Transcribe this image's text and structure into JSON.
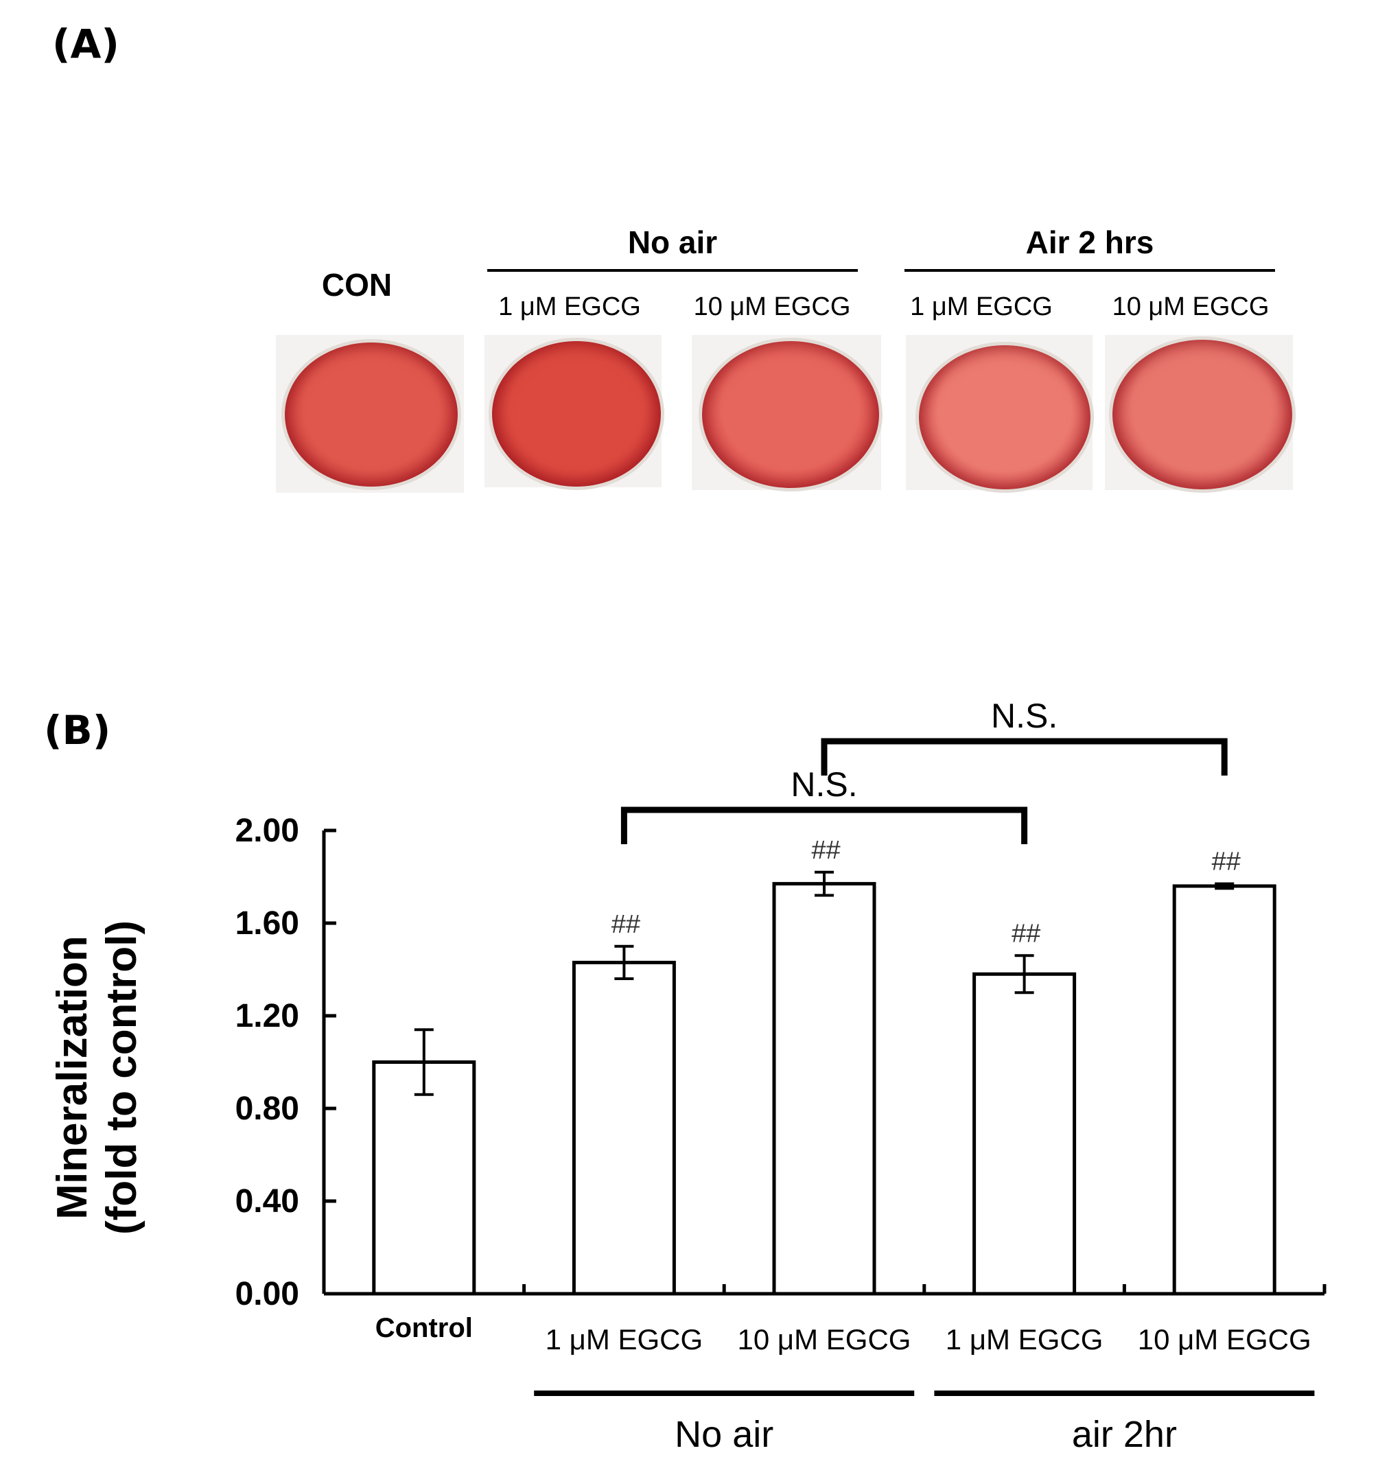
{
  "panel_a": {
    "label": "(A)",
    "con_label": "CON",
    "groups": [
      {
        "title": "No air",
        "sublabels": [
          "1 μM EGCG",
          "10 μM EGCG"
        ]
      },
      {
        "title": "Air 2 hrs",
        "sublabels": [
          "1 μM EGCG",
          "10 μM EGCG"
        ]
      }
    ],
    "stain_colors": [
      "#e0584d",
      "#dc4a3f",
      "#e6655c",
      "#ec7a70",
      "#e8766d"
    ]
  },
  "panel_b": {
    "label": "(B)",
    "groups": [
      "No air",
      "air 2hr"
    ]
  },
  "chart_data": {
    "type": "bar",
    "title": "",
    "xlabel": "",
    "ylabel": "Mineralization\n(fold to control)",
    "ylabel_lines": [
      "Mineralization",
      "(fold to control)"
    ],
    "ylim": [
      0,
      2.0
    ],
    "yticks": [
      "0.00",
      "0.40",
      "0.80",
      "1.20",
      "1.60",
      "2.00"
    ],
    "categories": [
      "Control",
      "1 μM EGCG",
      "10 μM EGCG",
      "1 μM EGCG",
      "10 μM EGCG"
    ],
    "values": [
      1.0,
      1.43,
      1.77,
      1.38,
      1.76
    ],
    "errors": [
      0.14,
      0.07,
      0.05,
      0.08,
      0.01
    ],
    "annotations": [
      "",
      "##",
      "##",
      "##",
      "##"
    ],
    "comparisons": [
      {
        "from": 1,
        "to": 3,
        "label": "N.S."
      },
      {
        "from": 2,
        "to": 4,
        "label": "N.S."
      }
    ],
    "category_groups": [
      {
        "label": "No air",
        "categories": [
          1,
          2
        ]
      },
      {
        "label": "air 2hr",
        "categories": [
          3,
          4
        ]
      }
    ],
    "bar_color": "#ffffff",
    "edge_color": "#000000"
  }
}
